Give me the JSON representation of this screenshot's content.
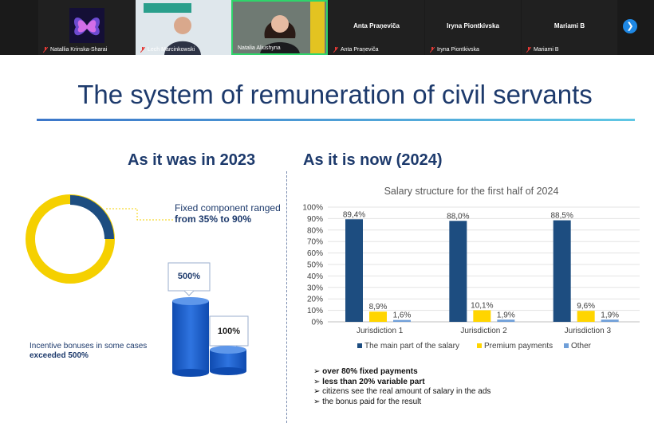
{
  "participants": [
    {
      "name": "Natallia Krinska-Sharai",
      "video": "avatar"
    },
    {
      "name": "Lech Marcinkowski",
      "video": "camera"
    },
    {
      "name": "Natalia Aliushyna",
      "video": "camera"
    },
    {
      "name": "Anta Praņeviča",
      "video": "none"
    },
    {
      "name": "Iryna Piontkivska",
      "video": "none"
    },
    {
      "name": "Mariami B",
      "video": "none"
    }
  ],
  "next_icon": "chevron-right-icon",
  "slide": {
    "title": "The system of remuneration of civil servants",
    "left_heading": "As it was in 2023",
    "right_heading": "As it is now (2024)",
    "fixed_line1": "Fixed component ranged",
    "fixed_line2": "from 35% to 90%",
    "box_500": "500%",
    "box_100": "100%",
    "incentive_line1": "Incentive bonuses in some cases",
    "incentive_line2": "exceeded 500%",
    "bullets": [
      {
        "text": "over 80% fixed payments",
        "bold": true
      },
      {
        "text": "less than 20% variable part",
        "bold": true
      },
      {
        "text": "citizens see the real amount of salary in the ads",
        "bold": false
      },
      {
        "text": "the bonus paid for the result",
        "bold": false
      }
    ]
  },
  "donut": {
    "ranges_percent": [
      35,
      90
    ],
    "colors": {
      "main": "#f5d000",
      "accent": "#1d4d80"
    }
  },
  "chart_data": {
    "type": "bar",
    "title": "Salary structure for the first half of 2024",
    "categories": [
      "Jurisdiction 1",
      "Jurisdiction 2",
      "Jurisdiction 3"
    ],
    "series": [
      {
        "name": "The main part of the salary",
        "values": [
          89.4,
          88.0,
          88.5
        ],
        "labels": [
          "89,4%",
          "88,0%",
          "88,5%"
        ],
        "color": "#1d4d80"
      },
      {
        "name": "Premium payments",
        "values": [
          8.9,
          10.1,
          9.6
        ],
        "labels": [
          "8,9%",
          "10,1%",
          "9,6%"
        ],
        "color": "#ffd500"
      },
      {
        "name": "Other",
        "values": [
          1.6,
          1.9,
          1.9
        ],
        "labels": [
          "1,6%",
          "1,9%",
          "1,9%"
        ],
        "color": "#6f9fd8"
      }
    ],
    "yticks": [
      "0%",
      "10%",
      "20%",
      "30%",
      "40%",
      "50%",
      "60%",
      "70%",
      "80%",
      "90%",
      "100%"
    ],
    "ylim": [
      0,
      100
    ],
    "grid": true,
    "legend": "bottom"
  }
}
